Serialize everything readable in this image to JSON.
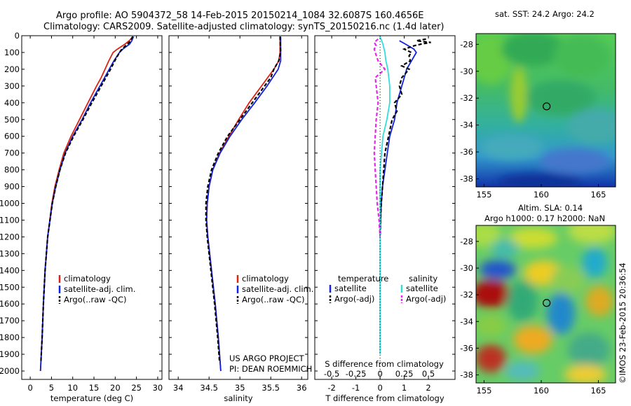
{
  "header": {
    "title_line1": "Argo profile: AO 5904372_58 14-Feb-2015 20150214_1084 32.6087S 160.4656E",
    "title_line2": "Climatology: CARS2009. Satellite-adjusted climatology: synTS_20150216.nc (1.4d later)"
  },
  "colors": {
    "climatology": "#dd2211",
    "satellite": "#1122dd",
    "argo": "#000000",
    "salinity_satellite": "#33dddd",
    "salinity_argo": "#ee22ee"
  },
  "watermark": "©IMOS 23-Feb-2015 20:36:54",
  "project_note": {
    "line1": "US ARGO PROJECT",
    "line2": "PI: DEAN ROEMMICH"
  },
  "chart_data": [
    {
      "id": "temperature",
      "type": "line",
      "xlabel": "temperature (deg C)",
      "xlim": [
        -2,
        31
      ],
      "ylim": [
        2050,
        0
      ],
      "yticks": [
        0,
        100,
        200,
        300,
        400,
        500,
        600,
        700,
        800,
        900,
        1000,
        1100,
        1200,
        1300,
        1400,
        1500,
        1600,
        1700,
        1800,
        1900,
        2000
      ],
      "xticks": [
        0,
        5,
        10,
        15,
        20,
        25,
        30
      ],
      "legend": [
        "climatology",
        "satellite-adj. clim.",
        "Argo(..raw -QC)"
      ],
      "series": [
        {
          "name": "climatology",
          "color": "#dd2211",
          "style": "solid",
          "depth": [
            5,
            30,
            50,
            80,
            100,
            150,
            200,
            250,
            300,
            400,
            500,
            600,
            700,
            800,
            900,
            1000,
            1200,
            1400,
            1600,
            1800,
            2000
          ],
          "values": [
            24.2,
            23.3,
            22.3,
            20.5,
            19.5,
            18.5,
            17.6,
            16.7,
            15.6,
            13.6,
            11.6,
            9.6,
            7.9,
            6.8,
            5.8,
            5.1,
            4.1,
            3.5,
            3.1,
            2.8,
            2.4
          ]
        },
        {
          "name": "satellite-adj. clim.",
          "color": "#1122dd",
          "style": "solid",
          "depth": [
            5,
            30,
            50,
            80,
            100,
            150,
            200,
            250,
            300,
            400,
            500,
            600,
            700,
            800,
            900,
            1000,
            1200,
            1400,
            1600,
            1800,
            2000
          ],
          "values": [
            24.3,
            23.9,
            23.4,
            21.8,
            21.0,
            19.7,
            18.6,
            17.5,
            16.4,
            14.2,
            12.2,
            10.0,
            8.2,
            7.0,
            6.0,
            5.2,
            4.1,
            3.5,
            3.1,
            2.8,
            2.4
          ]
        },
        {
          "name": "Argo(..raw -QC)",
          "color": "#000000",
          "style": "dashed",
          "depth": [
            5,
            20,
            40,
            60,
            80,
            100,
            150,
            200,
            250,
            300,
            400,
            500,
            600,
            700,
            800,
            900,
            1000,
            1200,
            1400,
            1600,
            1800,
            1950
          ],
          "values": [
            24.1,
            23.8,
            23.3,
            22.4,
            21.6,
            21.0,
            19.9,
            18.9,
            17.8,
            16.7,
            14.5,
            12.4,
            10.2,
            8.3,
            7.0,
            6.0,
            5.2,
            4.1,
            3.5,
            3.1,
            2.8,
            2.5
          ]
        }
      ]
    },
    {
      "id": "salinity",
      "type": "line",
      "xlabel": "salinity",
      "xlim": [
        33.85,
        36.1
      ],
      "ylim": [
        2050,
        0
      ],
      "xticks": [
        34,
        34.5,
        35,
        35.5,
        36
      ],
      "legend": [
        "climatology",
        "satellite-adj. clim.",
        "Argo(..raw -QC)"
      ],
      "series": [
        {
          "name": "climatology",
          "color": "#dd2211",
          "style": "solid",
          "depth": [
            5,
            100,
            150,
            200,
            300,
            400,
            500,
            600,
            700,
            800,
            900,
            1000,
            1100,
            1200,
            1400,
            1600,
            1800,
            2000
          ],
          "values": [
            35.65,
            35.65,
            35.63,
            35.55,
            35.35,
            35.15,
            34.98,
            34.82,
            34.67,
            34.56,
            34.5,
            34.47,
            34.46,
            34.48,
            34.54,
            34.6,
            34.65,
            34.69
          ]
        },
        {
          "name": "satellite-adj. clim.",
          "color": "#1122dd",
          "style": "solid",
          "depth": [
            5,
            100,
            150,
            200,
            300,
            400,
            500,
            600,
            700,
            800,
            900,
            1000,
            1100,
            1200,
            1400,
            1600,
            1800,
            2000
          ],
          "values": [
            35.66,
            35.66,
            35.66,
            35.62,
            35.44,
            35.24,
            35.03,
            34.84,
            34.68,
            34.56,
            34.5,
            34.47,
            34.46,
            34.48,
            34.54,
            34.6,
            34.65,
            34.69
          ]
        },
        {
          "name": "Argo(..raw -QC)",
          "color": "#000000",
          "style": "dashed",
          "depth": [
            5,
            100,
            150,
            200,
            250,
            300,
            400,
            500,
            600,
            700,
            800,
            900,
            1000,
            1100,
            1200,
            1400,
            1600,
            1800,
            1950
          ],
          "values": [
            35.65,
            35.66,
            35.63,
            35.55,
            35.5,
            35.4,
            35.2,
            35.0,
            34.8,
            34.65,
            34.54,
            34.48,
            34.45,
            34.45,
            34.47,
            34.53,
            34.59,
            34.64,
            34.67
          ]
        }
      ],
      "annotations": [
        "US ARGO PROJECT",
        "PI: DEAN ROEMMICH"
      ]
    },
    {
      "id": "difference",
      "type": "line",
      "xlabel_top": "S difference from climatology",
      "xlabel": "T difference from climatology",
      "xlim": [
        -2.7,
        3.1
      ],
      "ylim": [
        2050,
        0
      ],
      "xticks": [
        -2,
        -1,
        0,
        1,
        2
      ],
      "xticks_s": [
        -0.5,
        -0.25,
        0,
        0.25,
        0.5
      ],
      "legend_headers": [
        "temperature",
        "salinity"
      ],
      "series": [
        {
          "name": "satellite",
          "group": "temperature",
          "color": "#1122dd",
          "style": "solid",
          "depth": [
            30,
            50,
            80,
            100,
            150,
            200,
            250,
            300,
            400,
            500,
            600,
            700,
            800,
            900,
            1000,
            1100,
            1200
          ],
          "values": [
            0.8,
            1.05,
            1.4,
            1.5,
            1.3,
            1.1,
            1.0,
            0.9,
            0.7,
            0.6,
            0.4,
            0.3,
            0.2,
            0.1,
            0.05,
            0.02,
            0.0
          ]
        },
        {
          "name": "Argo(-adj)",
          "group": "temperature",
          "color": "#000000",
          "style": "dashed",
          "depth": [
            20,
            30,
            40,
            50,
            60,
            80,
            100,
            120,
            150,
            180,
            200,
            250,
            300,
            350,
            400,
            450,
            500,
            600,
            700,
            800,
            900,
            1000,
            1100,
            1200
          ],
          "values": [
            1.9,
            1.5,
            2.1,
            1.7,
            1.4,
            1.0,
            1.3,
            1.2,
            1.25,
            0.9,
            1.2,
            0.9,
            0.8,
            0.9,
            0.6,
            0.7,
            0.5,
            0.35,
            0.2,
            0.15,
            0.1,
            0.05,
            0.02,
            0.0
          ]
        },
        {
          "name": "satellite",
          "group": "salinity",
          "color": "#33dddd",
          "style": "solid",
          "depth": [
            5,
            50,
            100,
            150,
            200,
            300,
            400,
            500,
            600,
            800,
            1000,
            1200,
            1400,
            1600,
            1800,
            1900
          ],
          "values": [
            0.0,
            0.03,
            0.05,
            0.06,
            0.08,
            0.1,
            0.1,
            0.07,
            0.03,
            0.0,
            0.0,
            0.0,
            0.0,
            0.0,
            0.0,
            0.0
          ]
        },
        {
          "name": "Argo(-adj)",
          "group": "salinity",
          "color": "#ee22ee",
          "style": "dashed",
          "depth": [
            20,
            40,
            60,
            80,
            100,
            150,
            200,
            250,
            300,
            400,
            500,
            600,
            700,
            800,
            900,
            1000,
            1100,
            1200
          ],
          "values": [
            -0.02,
            -0.06,
            -0.04,
            -0.06,
            -0.05,
            -0.02,
            0.05,
            -0.05,
            -0.04,
            -0.02,
            -0.04,
            -0.05,
            -0.06,
            -0.05,
            -0.04,
            -0.03,
            -0.01,
            0.0
          ]
        }
      ]
    },
    {
      "id": "sst_map",
      "type": "heatmap",
      "title": "sat. SST: 24.2 Argo: 24.2",
      "xlim": [
        154.3,
        166.5
      ],
      "ylim": [
        -38.6,
        -27.2
      ],
      "xticks": [
        155,
        160,
        165
      ],
      "yticks": [
        -28,
        -30,
        -32,
        -34,
        -36,
        -38
      ],
      "argo_marker": [
        160.47,
        -32.61
      ]
    },
    {
      "id": "sla_map",
      "type": "heatmap",
      "title_line1": "Altim. SLA: 0.14",
      "title_line2": "Argo h1000: 0.17 h2000: NaN",
      "xlim": [
        154.3,
        166.5
      ],
      "ylim": [
        -38.6,
        -26.8
      ],
      "xticks": [
        155,
        160,
        165
      ],
      "yticks": [
        -28,
        -30,
        -32,
        -34,
        -36,
        -38
      ],
      "argo_marker": [
        160.47,
        -32.61
      ]
    }
  ]
}
